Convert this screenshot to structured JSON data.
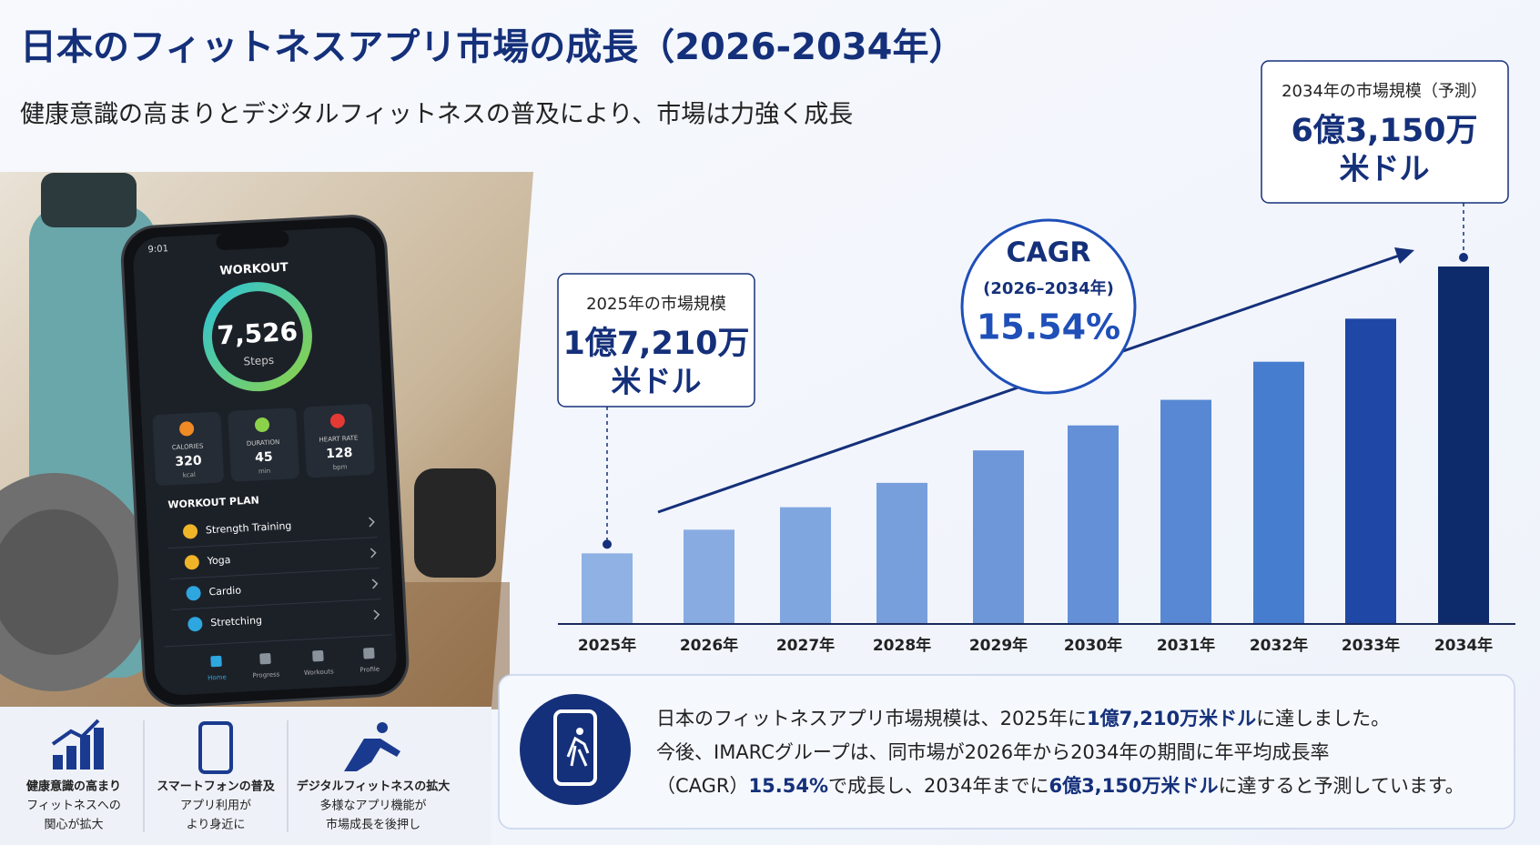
{
  "header": {
    "title": "日本のフィットネスアプリ市場の成長（2026-2034年）",
    "subtitle": "健康意識の高まりとデジタルフィットネスの普及により、市場は力強く成長"
  },
  "chart_data": {
    "type": "bar",
    "categories": [
      "2025年",
      "2026年",
      "2027年",
      "2028年",
      "2029年",
      "2030年",
      "2031年",
      "2032年",
      "2033年",
      "2034年"
    ],
    "values": [
      172.1,
      210,
      246,
      285,
      337,
      377,
      418,
      479,
      548,
      631.5
    ],
    "value_labels": [
      "1億7,210万",
      null,
      null,
      null,
      null,
      null,
      null,
      null,
      null,
      "6億3,150万"
    ],
    "colors": [
      "#8fb1e4",
      "#88ace2",
      "#80a6df",
      "#779fdc",
      "#6d97d9",
      "#6390d6",
      "#5888d3",
      "#477dcf",
      "#1f47a6",
      "#0d2a6b"
    ],
    "ylim": [
      59,
      700
    ],
    "callouts": [
      {
        "title": "2025年の市場規模",
        "unit": "米ドル"
      },
      {
        "title": "2034年の市場規模（予測）",
        "unit": "米ドル"
      }
    ],
    "cagr": {
      "label": "CAGR",
      "period": "(2026–2034年)",
      "value": 15.54,
      "value_label": "15.54%"
    }
  },
  "summary": {
    "lines": [
      [
        {
          "text": "日本のフィットネスアプリ市場規模は、2025年に",
          "bold": false
        },
        {
          "text": "1億7,210万米ドル",
          "bold": true
        },
        {
          "text": "に達しました。",
          "bold": false
        }
      ],
      [
        {
          "text": "今後、IMARCグループは、同市場が2026年から2034年の期間に年平均成長率",
          "bold": false
        }
      ],
      [
        {
          "text": "（CAGR）",
          "bold": false
        },
        {
          "text": "15.54%",
          "bold": true
        },
        {
          "text": "で成長し、2034年までに",
          "bold": false
        },
        {
          "text": "6億3,150万米ドル",
          "bold": true
        },
        {
          "text": "に達すると予測しています。",
          "bold": false
        }
      ]
    ]
  },
  "phone": {
    "time": "9:01",
    "screen_title": "WORKOUT",
    "steps": "7,526",
    "steps_label": "Steps",
    "stats": [
      {
        "label": "CALORIES",
        "value": "320",
        "unit": "kcal"
      },
      {
        "label": "DURATION",
        "value": "45",
        "unit": "min"
      },
      {
        "label": "HEART RATE",
        "value": "128",
        "unit": "bpm"
      }
    ],
    "plan_title": "WORKOUT PLAN",
    "plan": [
      "Strength Training",
      "Yoga",
      "Cardio",
      "Stretching"
    ],
    "nav": [
      "Home",
      "Progress",
      "Workouts",
      "Profile"
    ]
  },
  "features": [
    {
      "lines": [
        "健康意識の高まり",
        "フィットネスへの",
        "関心が拡大"
      ]
    },
    {
      "lines": [
        "スマートフォンの普及",
        "アプリ利用が",
        "より身近に"
      ]
    },
    {
      "lines": [
        "デジタルフィットネスの拡大",
        "多様なアプリ機能が",
        "市場成長を後押し"
      ]
    }
  ]
}
